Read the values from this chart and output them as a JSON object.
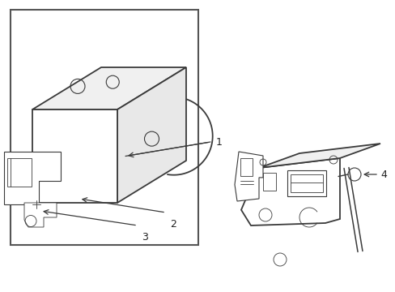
{
  "bg_color": "#ffffff",
  "line_color": "#3a3a3a",
  "border_color": "#444444",
  "label_color": "#222222",
  "lw": 1.3,
  "thin_lw": 0.8,
  "very_thin_lw": 0.6
}
